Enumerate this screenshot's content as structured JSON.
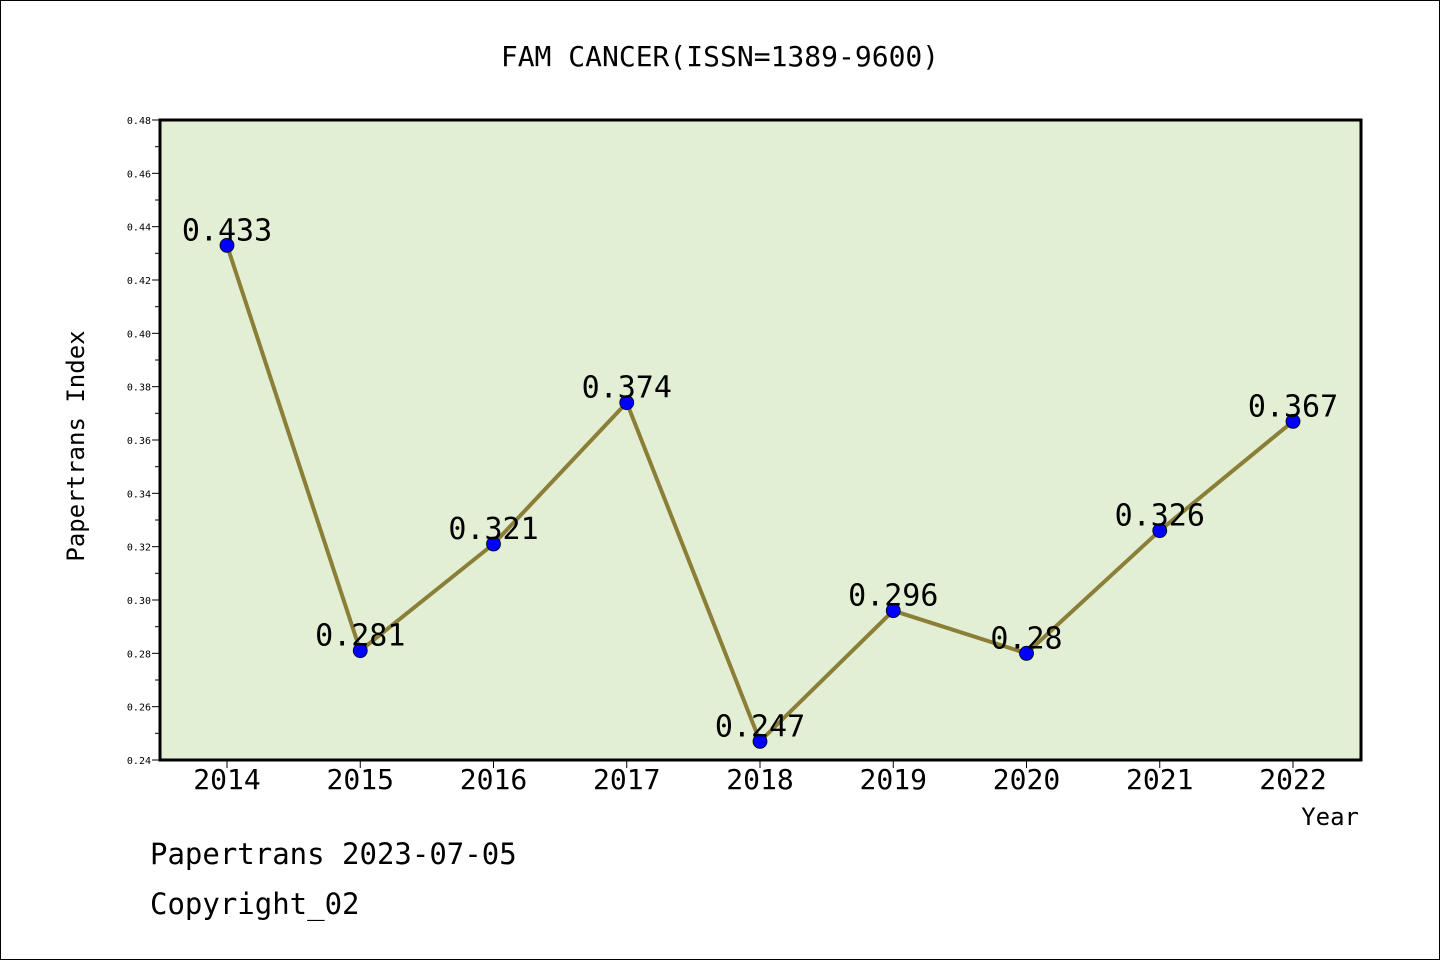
{
  "chart_data": {
    "type": "line",
    "title": "FAM CANCER(ISSN=1389-9600)",
    "xlabel": "Year",
    "ylabel": "Papertrans Index",
    "categories": [
      "2014",
      "2015",
      "2016",
      "2017",
      "2018",
      "2019",
      "2020",
      "2021",
      "2022"
    ],
    "values": [
      0.433,
      0.281,
      0.321,
      0.374,
      0.247,
      0.296,
      0.28,
      0.326,
      0.367
    ],
    "value_labels": [
      "0.433",
      "0.281",
      "0.321",
      "0.374",
      "0.247",
      "0.296",
      "0.28",
      "0.326",
      "0.367"
    ],
    "ylim": [
      0.24,
      0.48
    ],
    "yticks": [
      "0.24",
      "0.26",
      "0.28",
      "0.30",
      "0.32",
      "0.34",
      "0.36",
      "0.38",
      "0.40",
      "0.42",
      "0.44",
      "0.46",
      "0.48"
    ],
    "grid": false,
    "colors": {
      "plot_background": "#e2efd5",
      "line": "#8b7f37",
      "marker": "#0000ff"
    }
  },
  "footer": {
    "line1": "Papertrans 2023-07-05",
    "line2": "Copyright_02"
  }
}
